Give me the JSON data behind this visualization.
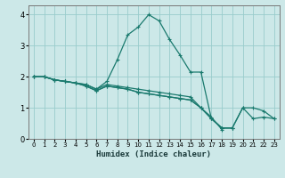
{
  "xlabel": "Humidex (Indice chaleur)",
  "bg_color": "#cce8e8",
  "grid_color": "#99cccc",
  "line_color": "#1a7a6e",
  "xlim": [
    -0.5,
    23.5
  ],
  "ylim": [
    0,
    4.3
  ],
  "xticks": [
    0,
    1,
    2,
    3,
    4,
    5,
    6,
    7,
    8,
    9,
    10,
    11,
    12,
    13,
    14,
    15,
    16,
    17,
    18,
    19,
    20,
    21,
    22,
    23
  ],
  "yticks": [
    0,
    1,
    2,
    3,
    4
  ],
  "lines": [
    {
      "x": [
        0,
        1,
        2,
        3,
        4,
        5,
        6,
        7,
        8,
        9,
        10,
        11,
        12,
        13,
        14,
        15,
        16,
        17,
        18,
        19
      ],
      "y": [
        2.0,
        2.0,
        1.9,
        1.85,
        1.8,
        1.75,
        1.6,
        1.85,
        2.55,
        3.35,
        3.6,
        4.0,
        3.8,
        3.2,
        2.7,
        2.15,
        2.15,
        0.65,
        0.35,
        0.35
      ]
    },
    {
      "x": [
        0,
        1,
        2,
        3,
        4,
        5,
        6,
        7,
        8,
        9,
        10,
        11,
        12,
        13,
        14,
        15,
        16,
        17,
        18
      ],
      "y": [
        2.0,
        2.0,
        1.9,
        1.85,
        1.8,
        1.75,
        1.6,
        1.75,
        1.7,
        1.65,
        1.6,
        1.55,
        1.5,
        1.45,
        1.4,
        1.35,
        1.0,
        0.7,
        0.3
      ]
    },
    {
      "x": [
        0,
        1,
        2,
        3,
        4,
        5,
        6,
        7,
        8,
        9,
        10,
        11,
        12,
        13,
        14,
        15,
        16,
        17,
        18,
        19,
        20,
        21,
        22,
        23
      ],
      "y": [
        2.0,
        2.0,
        1.9,
        1.85,
        1.8,
        1.7,
        1.55,
        1.7,
        1.65,
        1.6,
        1.5,
        1.45,
        1.4,
        1.35,
        1.3,
        1.25,
        1.0,
        0.65,
        0.35,
        0.35,
        1.0,
        0.65,
        0.7,
        0.65
      ]
    },
    {
      "x": [
        0,
        1,
        2,
        3,
        4,
        5,
        6,
        7,
        8,
        9,
        10,
        11,
        12,
        13,
        14,
        15,
        16,
        17,
        18,
        19,
        20,
        21,
        22,
        23
      ],
      "y": [
        2.0,
        2.0,
        1.9,
        1.85,
        1.8,
        1.7,
        1.55,
        1.7,
        1.65,
        1.6,
        1.5,
        1.45,
        1.4,
        1.35,
        1.3,
        1.25,
        1.0,
        0.65,
        0.35,
        0.35,
        1.0,
        1.0,
        0.9,
        0.65
      ]
    }
  ]
}
